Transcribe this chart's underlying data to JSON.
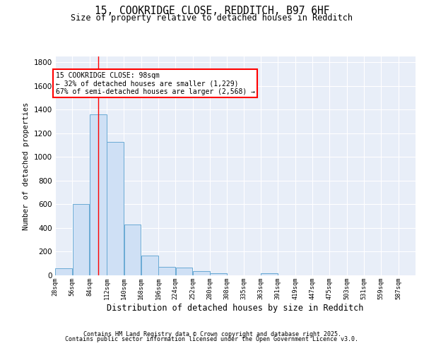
{
  "title1": "15, COOKRIDGE CLOSE, REDDITCH, B97 6HF",
  "title2": "Size of property relative to detached houses in Redditch",
  "xlabel": "Distribution of detached houses by size in Redditch",
  "ylabel": "Number of detached properties",
  "bar_color": "#cfe0f5",
  "bar_edge_color": "#6aaad4",
  "bg_color": "#e8eef8",
  "grid_color": "white",
  "bin_starts": [
    28,
    56,
    84,
    112,
    140,
    168,
    196,
    224,
    252,
    280,
    308,
    335,
    363,
    391,
    419,
    447,
    475,
    503,
    531,
    559
  ],
  "bin_width": 28,
  "bar_heights": [
    60,
    605,
    1360,
    1125,
    430,
    170,
    70,
    65,
    35,
    15,
    0,
    0,
    15,
    0,
    0,
    0,
    0,
    0,
    0,
    0
  ],
  "property_size": 98,
  "ylim": [
    0,
    1850
  ],
  "yticks": [
    0,
    200,
    400,
    600,
    800,
    1000,
    1200,
    1400,
    1600,
    1800
  ],
  "annotation_text": "15 COOKRIDGE CLOSE: 98sqm\n← 32% of detached houses are smaller (1,229)\n67% of semi-detached houses are larger (2,568) →",
  "annotation_box_color": "white",
  "annotation_box_edge": "red",
  "red_line_color": "red",
  "footnote1": "Contains HM Land Registry data © Crown copyright and database right 2025.",
  "footnote2": "Contains public sector information licensed under the Open Government Licence v3.0.",
  "tick_labels": [
    "28sqm",
    "56sqm",
    "84sqm",
    "112sqm",
    "140sqm",
    "168sqm",
    "196sqm",
    "224sqm",
    "252sqm",
    "280sqm",
    "308sqm",
    "335sqm",
    "363sqm",
    "391sqm",
    "419sqm",
    "447sqm",
    "475sqm",
    "503sqm",
    "531sqm",
    "559sqm",
    "587sqm"
  ]
}
